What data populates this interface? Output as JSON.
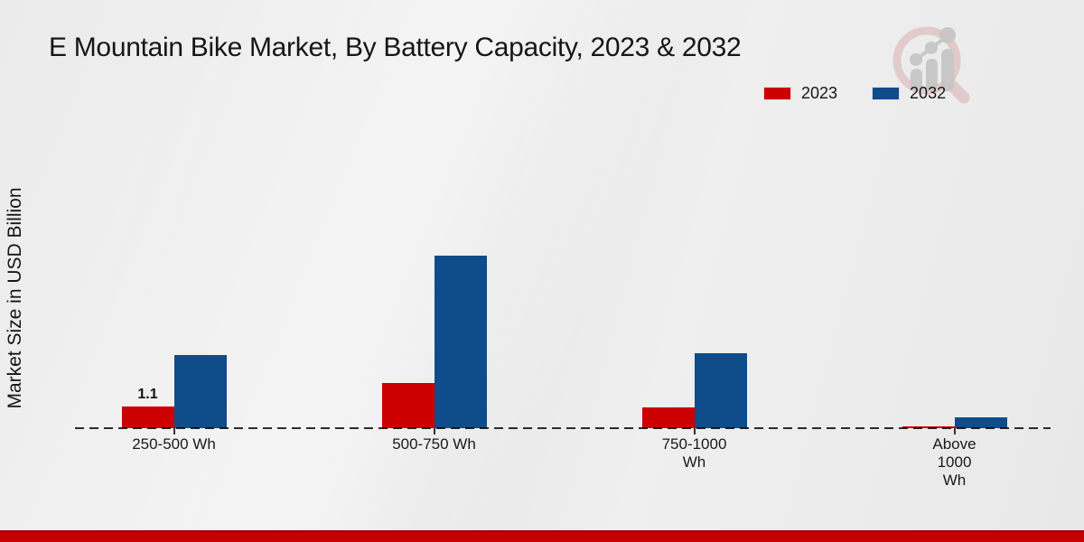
{
  "chart_data": {
    "type": "bar",
    "title": "E Mountain Bike Market, By Battery Capacity, 2023 & 2032",
    "ylabel": "Market Size in USD Billion",
    "xlabel": "",
    "categories": [
      "250-500 Wh",
      "500-750 Wh",
      "750-1000 Wh",
      "Above 1000 Wh"
    ],
    "tick_labels": [
      "250-500 Wh",
      "500-750 Wh",
      "750-1000\nWh",
      "Above\n1000\nWh"
    ],
    "series": [
      {
        "name": "2023",
        "color": "#cc0000",
        "values": [
          1.1,
          2.3,
          1.05,
          0.1
        ],
        "data_labels": [
          "1.1",
          null,
          null,
          null
        ]
      },
      {
        "name": "2032",
        "color": "#0e4c8a",
        "values": [
          3.7,
          8.75,
          3.8,
          0.55
        ],
        "data_labels": [
          null,
          null,
          null,
          null
        ]
      }
    ],
    "ylim": [
      0,
      10
    ],
    "grid": false,
    "y_ticks_visible": false,
    "legend_position": "top-right",
    "baseline_style": "dashed"
  },
  "branding": {
    "watermark_icon": "magnifier-bar-chart-logo",
    "footer_stripe_color": "#c40000",
    "footer_stripe_edge_color": "#9a0202"
  }
}
